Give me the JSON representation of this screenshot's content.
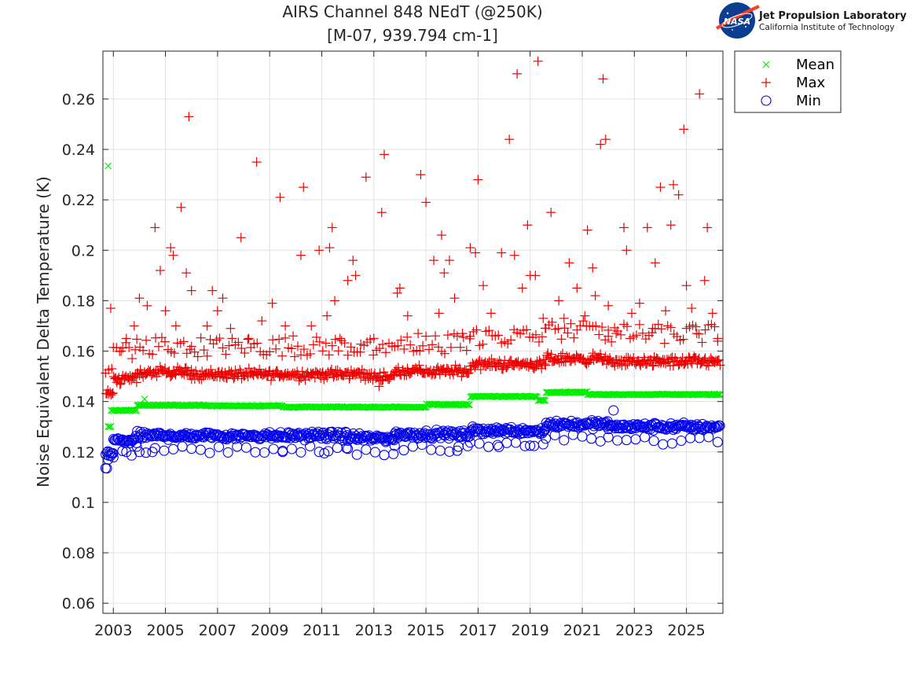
{
  "header": {
    "title_line1": "AIRS Channel 848 NEdT (@250K)",
    "title_line2": "[M-07, 939.794 cm-1]"
  },
  "logo": {
    "name": "nasa-meatball-icon",
    "line1": "Jet Propulsion Laboratory",
    "line2": "California Institute of Technology"
  },
  "chart_data": {
    "type": "scatter",
    "title": "AIRS Channel 848 NEdT (@250K)\n[M-07, 939.794 cm-1]",
    "xlabel": "",
    "ylabel": "Noise Equivalent Delta Temperature (K)",
    "xlim": [
      2002.6,
      2026.4
    ],
    "ylim": [
      0.056,
      0.279
    ],
    "xticks": [
      2003,
      2005,
      2007,
      2009,
      2011,
      2013,
      2015,
      2017,
      2019,
      2021,
      2023,
      2025
    ],
    "yticks": [
      0.06,
      0.08,
      0.1,
      0.12,
      0.14,
      0.16,
      0.18,
      0.2,
      0.22,
      0.24,
      0.26
    ],
    "ytick_labels": [
      "0.06",
      "0.08",
      "0.1",
      "0.12",
      "0.14",
      "0.16",
      "0.18",
      "0.2",
      "0.22",
      "0.24",
      "0.26"
    ],
    "grid": true,
    "legend_position": "outside-top-right",
    "series": [
      {
        "name": "Mean",
        "marker": "x",
        "color": "#00ee00",
        "segments": [
          {
            "x": [
              2002.8,
              2002.9
            ],
            "y": 0.13
          },
          {
            "x": [
              2002.9,
              2003.9
            ],
            "y": 0.1365
          },
          {
            "x": [
              2003.9,
              2006.5
            ],
            "y": 0.1385
          },
          {
            "x": [
              2006.5,
              2009.5
            ],
            "y": 0.1383
          },
          {
            "x": [
              2009.5,
              2015.0
            ],
            "y": 0.1378
          },
          {
            "x": [
              2015.0,
              2016.7
            ],
            "y": 0.1388
          },
          {
            "x": [
              2016.7,
              2019.3
            ],
            "y": 0.142
          },
          {
            "x": [
              2019.3,
              2019.6
            ],
            "y": 0.1405
          },
          {
            "x": [
              2019.6,
              2021.2
            ],
            "y": 0.1437
          },
          {
            "x": [
              2021.2,
              2026.3
            ],
            "y": 0.1428
          }
        ],
        "outliers": [
          {
            "x": 2002.8,
            "y": 0.2335
          },
          {
            "x": 2002.8,
            "y": 0.13
          },
          {
            "x": 2004.2,
            "y": 0.141
          }
        ]
      },
      {
        "name": "Max",
        "marker": "+",
        "color": "#ee0000",
        "segments": [
          {
            "x": [
              2002.7,
              2003.0
            ],
            "y": 0.143
          },
          {
            "x": [
              2003.0,
              2003.9
            ],
            "y": 0.149
          },
          {
            "x": [
              2003.9,
              2006.0
            ],
            "y": 0.1515
          },
          {
            "x": [
              2006.0,
              2012.5
            ],
            "y": 0.1508
          },
          {
            "x": [
              2012.5,
              2013.8
            ],
            "y": 0.15
          },
          {
            "x": [
              2013.8,
              2016.7
            ],
            "y": 0.152
          },
          {
            "x": [
              2016.7,
              2019.6
            ],
            "y": 0.1548
          },
          {
            "x": [
              2019.6,
              2022.0
            ],
            "y": 0.157
          },
          {
            "x": [
              2022.0,
              2026.3
            ],
            "y": 0.1558
          }
        ],
        "outliers": [
          {
            "x": 2002.9,
            "y": 0.177
          },
          {
            "x": 2003.3,
            "y": 0.16
          },
          {
            "x": 2003.5,
            "y": 0.165
          },
          {
            "x": 2003.8,
            "y": 0.17
          },
          {
            "x": 2004.0,
            "y": 0.181
          },
          {
            "x": 2004.3,
            "y": 0.178
          },
          {
            "x": 2004.6,
            "y": 0.209
          },
          {
            "x": 2004.8,
            "y": 0.192
          },
          {
            "x": 2005.0,
            "y": 0.176
          },
          {
            "x": 2005.2,
            "y": 0.201
          },
          {
            "x": 2005.3,
            "y": 0.198
          },
          {
            "x": 2005.4,
            "y": 0.17
          },
          {
            "x": 2005.6,
            "y": 0.217
          },
          {
            "x": 2005.8,
            "y": 0.191
          },
          {
            "x": 2005.9,
            "y": 0.253
          },
          {
            "x": 2006.0,
            "y": 0.184
          },
          {
            "x": 2006.6,
            "y": 0.17
          },
          {
            "x": 2006.8,
            "y": 0.184
          },
          {
            "x": 2007.0,
            "y": 0.176
          },
          {
            "x": 2007.2,
            "y": 0.181
          },
          {
            "x": 2007.5,
            "y": 0.169
          },
          {
            "x": 2007.9,
            "y": 0.205
          },
          {
            "x": 2008.2,
            "y": 0.165
          },
          {
            "x": 2008.5,
            "y": 0.235
          },
          {
            "x": 2008.7,
            "y": 0.172
          },
          {
            "x": 2009.1,
            "y": 0.179
          },
          {
            "x": 2009.4,
            "y": 0.221
          },
          {
            "x": 2009.6,
            "y": 0.17
          },
          {
            "x": 2009.9,
            "y": 0.166
          },
          {
            "x": 2010.2,
            "y": 0.198
          },
          {
            "x": 2010.3,
            "y": 0.225
          },
          {
            "x": 2010.6,
            "y": 0.17
          },
          {
            "x": 2010.9,
            "y": 0.2
          },
          {
            "x": 2011.2,
            "y": 0.174
          },
          {
            "x": 2011.3,
            "y": 0.201
          },
          {
            "x": 2011.4,
            "y": 0.209
          },
          {
            "x": 2011.5,
            "y": 0.18
          },
          {
            "x": 2011.7,
            "y": 0.165
          },
          {
            "x": 2012.0,
            "y": 0.188
          },
          {
            "x": 2012.2,
            "y": 0.196
          },
          {
            "x": 2012.3,
            "y": 0.19
          },
          {
            "x": 2012.7,
            "y": 0.229
          },
          {
            "x": 2013.0,
            "y": 0.165
          },
          {
            "x": 2013.3,
            "y": 0.215
          },
          {
            "x": 2013.4,
            "y": 0.238
          },
          {
            "x": 2013.9,
            "y": 0.183
          },
          {
            "x": 2014.0,
            "y": 0.185
          },
          {
            "x": 2014.3,
            "y": 0.174
          },
          {
            "x": 2014.7,
            "y": 0.167
          },
          {
            "x": 2014.8,
            "y": 0.23
          },
          {
            "x": 2015.0,
            "y": 0.219
          },
          {
            "x": 2015.3,
            "y": 0.196
          },
          {
            "x": 2015.5,
            "y": 0.175
          },
          {
            "x": 2015.6,
            "y": 0.206
          },
          {
            "x": 2015.7,
            "y": 0.191
          },
          {
            "x": 2015.9,
            "y": 0.196
          },
          {
            "x": 2016.1,
            "y": 0.181
          },
          {
            "x": 2016.4,
            "y": 0.167
          },
          {
            "x": 2016.7,
            "y": 0.201
          },
          {
            "x": 2016.9,
            "y": 0.199
          },
          {
            "x": 2017.0,
            "y": 0.228
          },
          {
            "x": 2017.2,
            "y": 0.186
          },
          {
            "x": 2017.5,
            "y": 0.175
          },
          {
            "x": 2017.9,
            "y": 0.199
          },
          {
            "x": 2018.2,
            "y": 0.244
          },
          {
            "x": 2018.4,
            "y": 0.198
          },
          {
            "x": 2018.5,
            "y": 0.27
          },
          {
            "x": 2018.7,
            "y": 0.185
          },
          {
            "x": 2018.9,
            "y": 0.21
          },
          {
            "x": 2019.0,
            "y": 0.19
          },
          {
            "x": 2019.2,
            "y": 0.19
          },
          {
            "x": 2019.3,
            "y": 0.275
          },
          {
            "x": 2019.5,
            "y": 0.173
          },
          {
            "x": 2019.8,
            "y": 0.215
          },
          {
            "x": 2020.1,
            "y": 0.18
          },
          {
            "x": 2020.3,
            "y": 0.173
          },
          {
            "x": 2020.5,
            "y": 0.195
          },
          {
            "x": 2020.8,
            "y": 0.185
          },
          {
            "x": 2021.1,
            "y": 0.174
          },
          {
            "x": 2021.2,
            "y": 0.208
          },
          {
            "x": 2021.4,
            "y": 0.193
          },
          {
            "x": 2021.5,
            "y": 0.182
          },
          {
            "x": 2021.7,
            "y": 0.242
          },
          {
            "x": 2021.8,
            "y": 0.268
          },
          {
            "x": 2021.9,
            "y": 0.244
          },
          {
            "x": 2022.0,
            "y": 0.178
          },
          {
            "x": 2022.3,
            "y": 0.167
          },
          {
            "x": 2022.6,
            "y": 0.209
          },
          {
            "x": 2022.7,
            "y": 0.2
          },
          {
            "x": 2022.9,
            "y": 0.175
          },
          {
            "x": 2023.2,
            "y": 0.179
          },
          {
            "x": 2023.5,
            "y": 0.209
          },
          {
            "x": 2023.7,
            "y": 0.169
          },
          {
            "x": 2023.8,
            "y": 0.195
          },
          {
            "x": 2024.0,
            "y": 0.225
          },
          {
            "x": 2024.2,
            "y": 0.176
          },
          {
            "x": 2024.4,
            "y": 0.21
          },
          {
            "x": 2024.5,
            "y": 0.226
          },
          {
            "x": 2024.7,
            "y": 0.222
          },
          {
            "x": 2024.9,
            "y": 0.248
          },
          {
            "x": 2025.0,
            "y": 0.186
          },
          {
            "x": 2025.2,
            "y": 0.177
          },
          {
            "x": 2025.4,
            "y": 0.167
          },
          {
            "x": 2025.5,
            "y": 0.262
          },
          {
            "x": 2025.7,
            "y": 0.188
          },
          {
            "x": 2025.8,
            "y": 0.209
          },
          {
            "x": 2026.0,
            "y": 0.175
          },
          {
            "x": 2026.2,
            "y": 0.165
          },
          {
            "x": 2013.2,
            "y": 0.146
          }
        ]
      },
      {
        "name": "Min",
        "marker": "o",
        "color": "#0000ee",
        "segments": [
          {
            "x": [
              2002.7,
              2003.0
            ],
            "y": 0.1195
          },
          {
            "x": [
              2003.0,
              2003.9
            ],
            "y": 0.1245
          },
          {
            "x": [
              2003.9,
              2012.0
            ],
            "y": 0.1265
          },
          {
            "x": [
              2012.0,
              2013.8
            ],
            "y": 0.1255
          },
          {
            "x": [
              2013.8,
              2016.7
            ],
            "y": 0.127
          },
          {
            "x": [
              2016.7,
              2019.6
            ],
            "y": 0.1285
          },
          {
            "x": [
              2019.6,
              2022.0
            ],
            "y": 0.131
          },
          {
            "x": [
              2022.0,
              2026.3
            ],
            "y": 0.13
          }
        ],
        "outliers": [
          {
            "x": 2002.75,
            "y": 0.1135
          },
          {
            "x": 2002.8,
            "y": 0.117
          },
          {
            "x": 2002.9,
            "y": 0.1185
          },
          {
            "x": 2003.5,
            "y": 0.12
          },
          {
            "x": 2004.0,
            "y": 0.12
          },
          {
            "x": 2004.5,
            "y": 0.12
          },
          {
            "x": 2009.5,
            "y": 0.12
          },
          {
            "x": 2011.1,
            "y": 0.1195
          },
          {
            "x": 2016.2,
            "y": 0.1205
          },
          {
            "x": 2017.8,
            "y": 0.122
          },
          {
            "x": 2019.0,
            "y": 0.1225
          },
          {
            "x": 2022.2,
            "y": 0.1365
          }
        ]
      }
    ]
  }
}
